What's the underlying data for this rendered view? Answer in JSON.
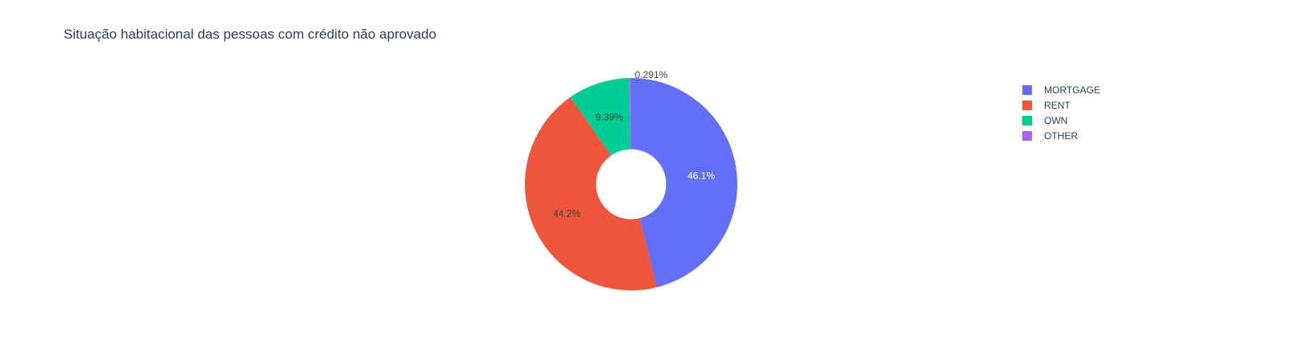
{
  "chart_data": {
    "type": "pie",
    "title": "Situação habitacional das pessoas com crédito não aprovado",
    "hole": 0.33,
    "labels": [
      "MORTGAGE",
      "RENT",
      "OWN",
      "OTHER"
    ],
    "values": [
      46.1,
      44.2,
      9.39,
      0.291
    ],
    "text_labels": [
      "46.1%",
      "44.2%",
      "9.39%",
      "0.291%"
    ],
    "colors": [
      "#636efa",
      "#ef553b",
      "#00cc96",
      "#ab63fa"
    ],
    "legend": {
      "position": "top-right",
      "entries": [
        "MORTGAGE",
        "RENT",
        "OWN",
        "OTHER"
      ]
    },
    "direction": "clockwise",
    "rotation_start": "top"
  }
}
